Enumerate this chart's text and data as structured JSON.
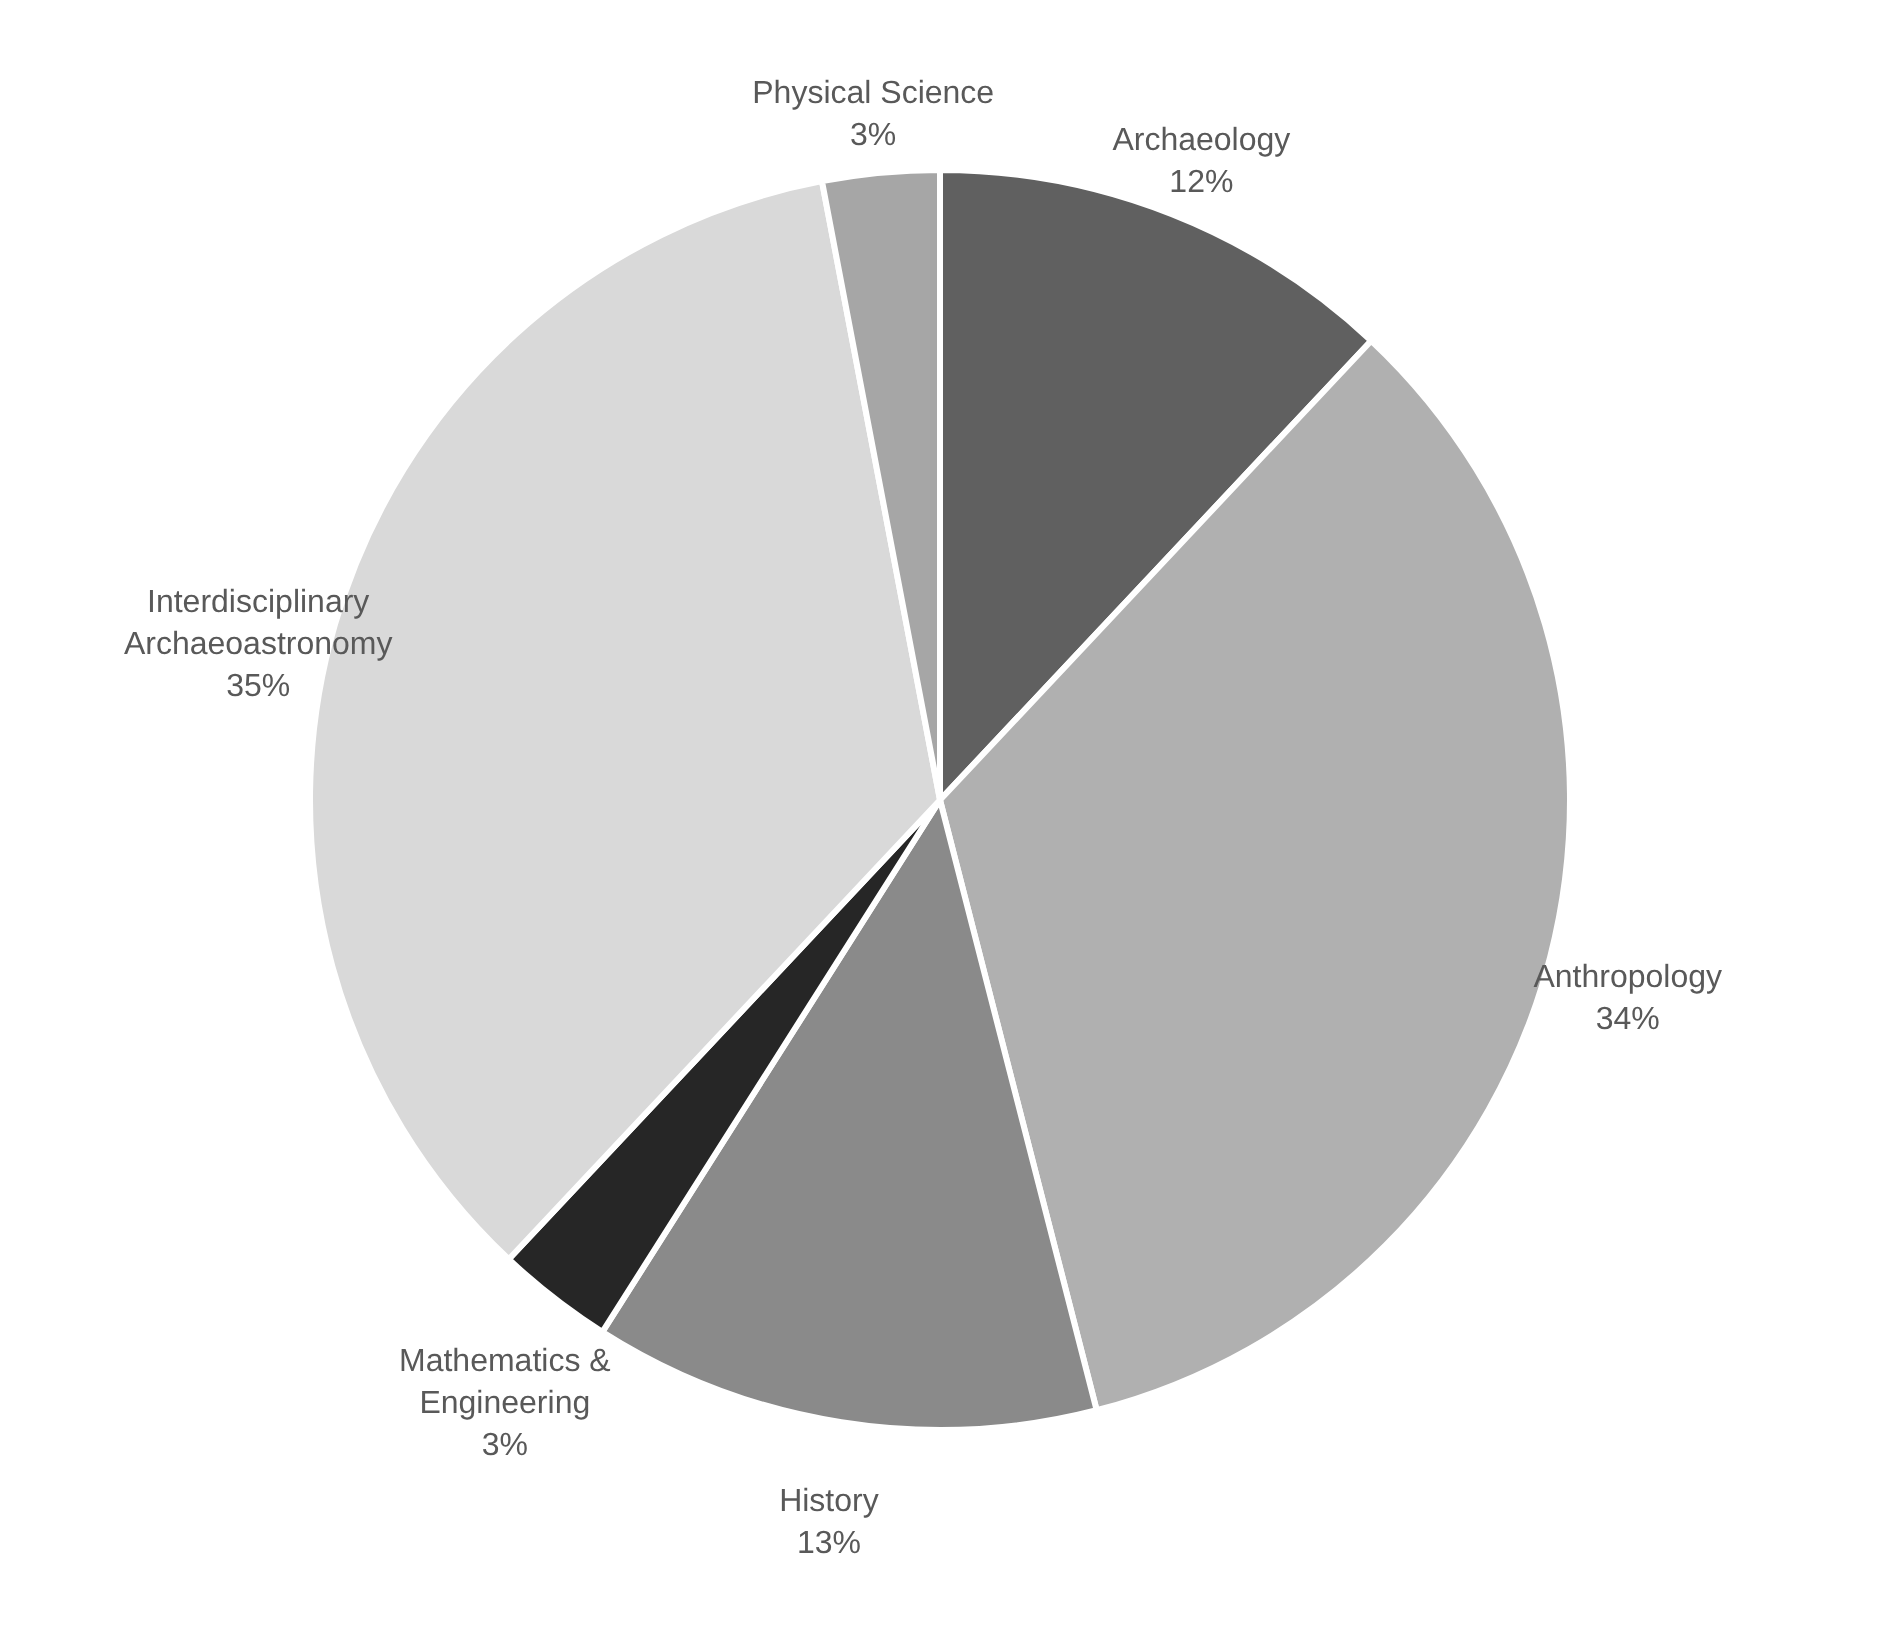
{
  "chart_data": {
    "type": "pie",
    "categories": [
      "Archaeology",
      "Anthropology",
      "History",
      "Mathematics & Engineering",
      "Interdisciplinary Archaeoastronomy",
      "Physical Science"
    ],
    "values": [
      12,
      34,
      13,
      3,
      35,
      3
    ],
    "value_labels": [
      "12%",
      "34%",
      "13%",
      "3%",
      "35%",
      "3%"
    ],
    "colors": [
      "#606060",
      "#b0b0b0",
      "#8a8a8a",
      "#262626",
      "#d9d9d9",
      "#a6a6a6"
    ]
  }
}
